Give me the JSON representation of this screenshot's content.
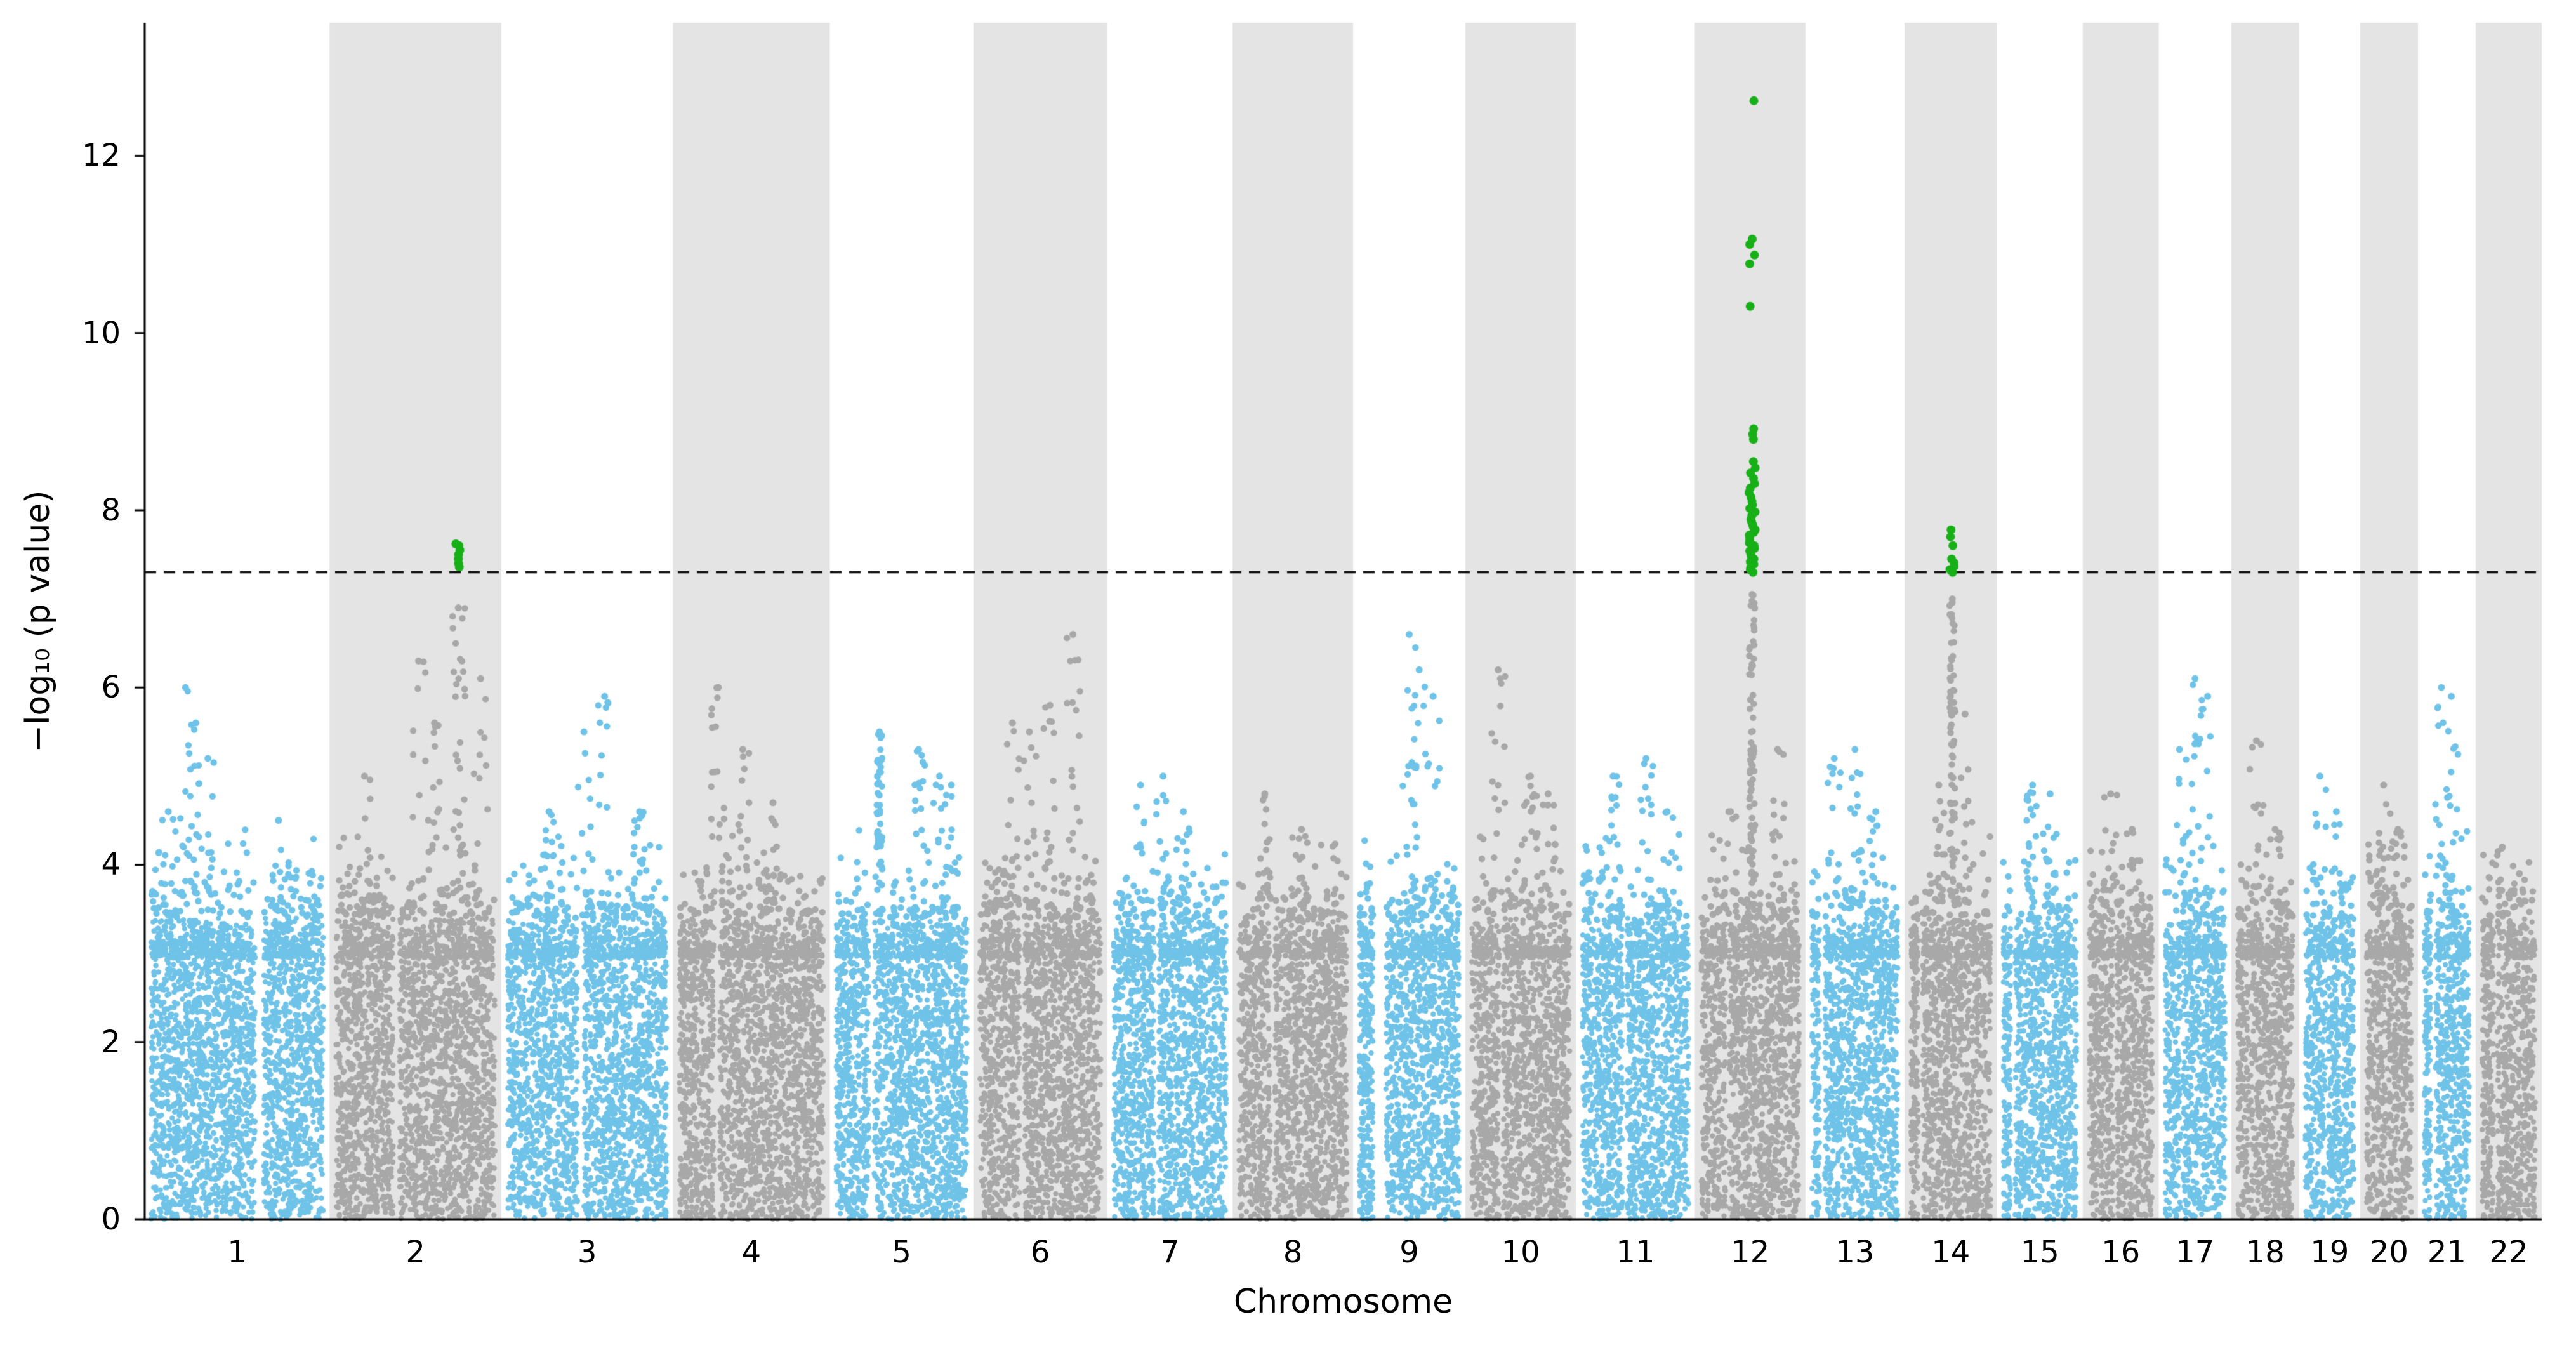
{
  "chart_data": {
    "type": "scatter",
    "subtype": "manhattan",
    "title": "",
    "xlabel": "Chromosome",
    "ylabel": "−log₁₀ (p value)",
    "ylim": [
      0,
      13.5
    ],
    "yticks": [
      0,
      2,
      4,
      6,
      8,
      10,
      12
    ],
    "grid": false,
    "legend": "none",
    "threshold_line": {
      "y": 7.3,
      "style": "dashed",
      "color": "#000000"
    },
    "colors": {
      "odd_chromosome": "#6fc3e8",
      "even_chromosome": "#a8a8a8",
      "band": "#e4e4e4",
      "significant": "#17b017",
      "axis": "#000000",
      "background": "#ffffff"
    },
    "chromosomes": [
      {
        "label": "1",
        "size": 112,
        "gap": {
          "c": 0.63,
          "w": 0.05
        },
        "peaks": [
          {
            "f": 0.2,
            "m": 6.0
          },
          {
            "f": 0.26,
            "m": 5.6
          },
          {
            "f": 0.33,
            "m": 5.2
          },
          {
            "f": 0.1,
            "m": 4.6
          },
          {
            "f": 0.74,
            "m": 4.5
          }
        ]
      },
      {
        "label": "2",
        "size": 104,
        "gap": {
          "c": 0.38,
          "w": 0.04
        },
        "peaks": [
          {
            "f": 0.18,
            "m": 5.0
          },
          {
            "f": 0.52,
            "m": 6.3
          },
          {
            "f": 0.62,
            "m": 5.6
          },
          {
            "f": 0.77,
            "m": 6.9,
            "n": 30
          },
          {
            "f": 0.91,
            "m": 6.1
          }
        ]
      },
      {
        "label": "3",
        "size": 104,
        "gap": {
          "c": 0.46,
          "w": 0.04
        },
        "peaks": [
          {
            "f": 0.26,
            "m": 4.6
          },
          {
            "f": 0.48,
            "m": 5.5
          },
          {
            "f": 0.61,
            "m": 5.9
          },
          {
            "f": 0.83,
            "m": 4.6
          }
        ]
      },
      {
        "label": "4",
        "size": 95,
        "gap": {
          "c": 0.26,
          "w": 0.04
        },
        "peaks": [
          {
            "f": 0.27,
            "m": 6.0,
            "n": 18
          },
          {
            "f": 0.44,
            "m": 5.3
          },
          {
            "f": 0.65,
            "m": 4.7
          }
        ]
      },
      {
        "label": "5",
        "size": 87,
        "gap": {
          "c": 0.27,
          "w": 0.04
        },
        "peaks": [
          {
            "f": 0.33,
            "m": 5.5,
            "n": 55
          },
          {
            "f": 0.63,
            "m": 5.3,
            "n": 20
          },
          {
            "f": 0.79,
            "m": 5.0
          },
          {
            "f": 0.88,
            "m": 4.9
          }
        ]
      },
      {
        "label": "6",
        "size": 81,
        "gap": {
          "c": 0.35,
          "w": 0.04
        },
        "peaks": [
          {
            "f": 0.27,
            "m": 5.6
          },
          {
            "f": 0.41,
            "m": 5.5
          },
          {
            "f": 0.58,
            "m": 5.8
          },
          {
            "f": 0.77,
            "m": 6.6,
            "n": 22
          }
        ]
      },
      {
        "label": "7",
        "size": 76,
        "gap": {
          "c": 0.38,
          "w": 0.04
        },
        "peaks": [
          {
            "f": 0.24,
            "m": 4.9
          },
          {
            "f": 0.44,
            "m": 5.0
          },
          {
            "f": 0.62,
            "m": 4.6
          }
        ]
      },
      {
        "label": "8",
        "size": 73,
        "gap": {
          "c": 0.31,
          "w": 0.04
        },
        "peaks": [
          {
            "f": 0.24,
            "m": 4.8
          },
          {
            "f": 0.58,
            "m": 4.4
          }
        ]
      },
      {
        "label": "9",
        "size": 68,
        "gap": {
          "c": 0.2,
          "w": 0.13
        },
        "peaks": [
          {
            "f": 0.5,
            "m": 6.6,
            "n": 16
          },
          {
            "f": 0.6,
            "m": 6.2
          },
          {
            "f": 0.74,
            "m": 5.9
          }
        ]
      },
      {
        "label": "10",
        "size": 67,
        "gap": {
          "c": 0.3,
          "w": 0.04
        },
        "peaks": [
          {
            "f": 0.27,
            "m": 6.2,
            "n": 16
          },
          {
            "f": 0.6,
            "m": 5.0
          },
          {
            "f": 0.78,
            "m": 4.8
          }
        ]
      },
      {
        "label": "11",
        "size": 72,
        "gap": {
          "c": 0.4,
          "w": 0.04
        },
        "peaks": [
          {
            "f": 0.29,
            "m": 5.0
          },
          {
            "f": 0.6,
            "m": 5.2
          },
          {
            "f": 0.8,
            "m": 4.6
          }
        ]
      },
      {
        "label": "12",
        "size": 67,
        "gap": {
          "c": 0.27,
          "w": 0.03
        },
        "peaks": [
          {
            "f": 0.52,
            "m": 7.05,
            "n": 80
          },
          {
            "f": 0.78,
            "m": 5.3
          },
          {
            "f": 0.3,
            "m": 4.6
          }
        ]
      },
      {
        "label": "13",
        "size": 60,
        "gap": {
          "c": 0.12,
          "w": 0.06
        },
        "peaks": [
          {
            "f": 0.26,
            "m": 5.2
          },
          {
            "f": 0.5,
            "m": 5.3
          },
          {
            "f": 0.74,
            "m": 4.6
          }
        ]
      },
      {
        "label": "14",
        "size": 56,
        "gap": {
          "c": 0.12,
          "w": 0.06
        },
        "peaks": [
          {
            "f": 0.52,
            "m": 7.0,
            "n": 70
          },
          {
            "f": 0.68,
            "m": 5.7
          },
          {
            "f": 0.35,
            "m": 4.9
          }
        ]
      },
      {
        "label": "15",
        "size": 52,
        "gap": {
          "c": 0.13,
          "w": 0.06
        },
        "peaks": [
          {
            "f": 0.4,
            "m": 4.9,
            "n": 20
          },
          {
            "f": 0.64,
            "m": 4.8,
            "n": 16
          }
        ]
      },
      {
        "label": "16",
        "size": 46,
        "gap": {
          "c": 0.41,
          "w": 0.05
        },
        "peaks": [
          {
            "f": 0.34,
            "m": 4.8
          },
          {
            "f": 0.68,
            "m": 4.4
          }
        ]
      },
      {
        "label": "17",
        "size": 44,
        "gap": {
          "c": 0.28,
          "w": 0.03
        },
        "peaks": [
          {
            "f": 0.24,
            "m": 5.3
          },
          {
            "f": 0.5,
            "m": 6.1,
            "n": 16
          },
          {
            "f": 0.71,
            "m": 5.9
          }
        ]
      },
      {
        "label": "18",
        "size": 41,
        "gap": {
          "c": 0.22,
          "w": 0.03
        },
        "peaks": [
          {
            "f": 0.34,
            "m": 5.4
          },
          {
            "f": 0.68,
            "m": 4.4
          }
        ]
      },
      {
        "label": "19",
        "size": 37,
        "gap": {
          "c": 0.44,
          "w": 0.04
        },
        "peaks": [
          {
            "f": 0.3,
            "m": 5.0
          },
          {
            "f": 0.64,
            "m": 4.6
          }
        ]
      },
      {
        "label": "20",
        "size": 35,
        "gap": {
          "c": 0.44,
          "w": 0.03
        },
        "peaks": [
          {
            "f": 0.38,
            "m": 4.9
          },
          {
            "f": 0.7,
            "m": 4.4
          }
        ]
      },
      {
        "label": "21",
        "size": 35,
        "gap": {
          "c": 0.2,
          "w": 0.1
        },
        "peaks": [
          {
            "f": 0.38,
            "m": 6.0,
            "n": 14
          },
          {
            "f": 0.6,
            "m": 5.9
          }
        ]
      },
      {
        "label": "22",
        "size": 40,
        "gap": {
          "c": 0.25,
          "w": 0.06
        },
        "peaks": [
          {
            "f": 0.38,
            "m": 4.2
          },
          {
            "f": 0.7,
            "m": 3.9
          }
        ]
      }
    ],
    "significant_hits": [
      {
        "chromosome": "2",
        "position_frac": 0.77,
        "values": [
          7.36,
          7.4,
          7.45,
          7.5,
          7.55,
          7.6,
          7.62
        ]
      },
      {
        "chromosome": "12",
        "position_frac": 0.52,
        "values": [
          7.3,
          7.33,
          7.36,
          7.39,
          7.42,
          7.45,
          7.48,
          7.51,
          7.54,
          7.57,
          7.6,
          7.63,
          7.66,
          7.69,
          7.72,
          7.75,
          7.78,
          7.81,
          7.84,
          7.87,
          7.9,
          7.94,
          7.98,
          8.02,
          8.06,
          8.1,
          8.15,
          8.2,
          8.25,
          8.3,
          8.36,
          8.42,
          8.48,
          8.55,
          8.8,
          8.86,
          8.92,
          10.3,
          10.78,
          10.88,
          11.0,
          11.06,
          12.62
        ]
      },
      {
        "chromosome": "14",
        "position_frac": 0.52,
        "values": [
          7.3,
          7.33,
          7.37,
          7.41,
          7.45,
          7.6,
          7.7,
          7.78
        ]
      }
    ]
  }
}
